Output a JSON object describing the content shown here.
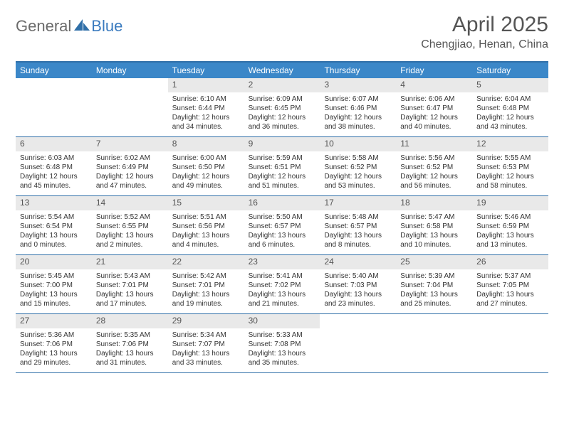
{
  "logo": {
    "part1": "General",
    "part2": "Blue"
  },
  "title": "April 2025",
  "location": "Chengjiao, Henan, China",
  "colors": {
    "header_bg": "#3b87c8",
    "border": "#2f6fa8",
    "daynum_bg": "#e9e9e9",
    "text_muted": "#555",
    "logo_gray": "#6b6b6b",
    "logo_blue": "#3b7bbf"
  },
  "daysOfWeek": [
    "Sunday",
    "Monday",
    "Tuesday",
    "Wednesday",
    "Thursday",
    "Friday",
    "Saturday"
  ],
  "startOffset": 2,
  "days": [
    {
      "n": 1,
      "sunrise": "6:10 AM",
      "sunset": "6:44 PM",
      "daylight": "12 hours and 34 minutes."
    },
    {
      "n": 2,
      "sunrise": "6:09 AM",
      "sunset": "6:45 PM",
      "daylight": "12 hours and 36 minutes."
    },
    {
      "n": 3,
      "sunrise": "6:07 AM",
      "sunset": "6:46 PM",
      "daylight": "12 hours and 38 minutes."
    },
    {
      "n": 4,
      "sunrise": "6:06 AM",
      "sunset": "6:47 PM",
      "daylight": "12 hours and 40 minutes."
    },
    {
      "n": 5,
      "sunrise": "6:04 AM",
      "sunset": "6:48 PM",
      "daylight": "12 hours and 43 minutes."
    },
    {
      "n": 6,
      "sunrise": "6:03 AM",
      "sunset": "6:48 PM",
      "daylight": "12 hours and 45 minutes."
    },
    {
      "n": 7,
      "sunrise": "6:02 AM",
      "sunset": "6:49 PM",
      "daylight": "12 hours and 47 minutes."
    },
    {
      "n": 8,
      "sunrise": "6:00 AM",
      "sunset": "6:50 PM",
      "daylight": "12 hours and 49 minutes."
    },
    {
      "n": 9,
      "sunrise": "5:59 AM",
      "sunset": "6:51 PM",
      "daylight": "12 hours and 51 minutes."
    },
    {
      "n": 10,
      "sunrise": "5:58 AM",
      "sunset": "6:52 PM",
      "daylight": "12 hours and 53 minutes."
    },
    {
      "n": 11,
      "sunrise": "5:56 AM",
      "sunset": "6:52 PM",
      "daylight": "12 hours and 56 minutes."
    },
    {
      "n": 12,
      "sunrise": "5:55 AM",
      "sunset": "6:53 PM",
      "daylight": "12 hours and 58 minutes."
    },
    {
      "n": 13,
      "sunrise": "5:54 AM",
      "sunset": "6:54 PM",
      "daylight": "13 hours and 0 minutes."
    },
    {
      "n": 14,
      "sunrise": "5:52 AM",
      "sunset": "6:55 PM",
      "daylight": "13 hours and 2 minutes."
    },
    {
      "n": 15,
      "sunrise": "5:51 AM",
      "sunset": "6:56 PM",
      "daylight": "13 hours and 4 minutes."
    },
    {
      "n": 16,
      "sunrise": "5:50 AM",
      "sunset": "6:57 PM",
      "daylight": "13 hours and 6 minutes."
    },
    {
      "n": 17,
      "sunrise": "5:48 AM",
      "sunset": "6:57 PM",
      "daylight": "13 hours and 8 minutes."
    },
    {
      "n": 18,
      "sunrise": "5:47 AM",
      "sunset": "6:58 PM",
      "daylight": "13 hours and 10 minutes."
    },
    {
      "n": 19,
      "sunrise": "5:46 AM",
      "sunset": "6:59 PM",
      "daylight": "13 hours and 13 minutes."
    },
    {
      "n": 20,
      "sunrise": "5:45 AM",
      "sunset": "7:00 PM",
      "daylight": "13 hours and 15 minutes."
    },
    {
      "n": 21,
      "sunrise": "5:43 AM",
      "sunset": "7:01 PM",
      "daylight": "13 hours and 17 minutes."
    },
    {
      "n": 22,
      "sunrise": "5:42 AM",
      "sunset": "7:01 PM",
      "daylight": "13 hours and 19 minutes."
    },
    {
      "n": 23,
      "sunrise": "5:41 AM",
      "sunset": "7:02 PM",
      "daylight": "13 hours and 21 minutes."
    },
    {
      "n": 24,
      "sunrise": "5:40 AM",
      "sunset": "7:03 PM",
      "daylight": "13 hours and 23 minutes."
    },
    {
      "n": 25,
      "sunrise": "5:39 AM",
      "sunset": "7:04 PM",
      "daylight": "13 hours and 25 minutes."
    },
    {
      "n": 26,
      "sunrise": "5:37 AM",
      "sunset": "7:05 PM",
      "daylight": "13 hours and 27 minutes."
    },
    {
      "n": 27,
      "sunrise": "5:36 AM",
      "sunset": "7:06 PM",
      "daylight": "13 hours and 29 minutes."
    },
    {
      "n": 28,
      "sunrise": "5:35 AM",
      "sunset": "7:06 PM",
      "daylight": "13 hours and 31 minutes."
    },
    {
      "n": 29,
      "sunrise": "5:34 AM",
      "sunset": "7:07 PM",
      "daylight": "13 hours and 33 minutes."
    },
    {
      "n": 30,
      "sunrise": "5:33 AM",
      "sunset": "7:08 PM",
      "daylight": "13 hours and 35 minutes."
    }
  ],
  "labels": {
    "sunrise": "Sunrise:",
    "sunset": "Sunset:",
    "daylight": "Daylight:"
  }
}
